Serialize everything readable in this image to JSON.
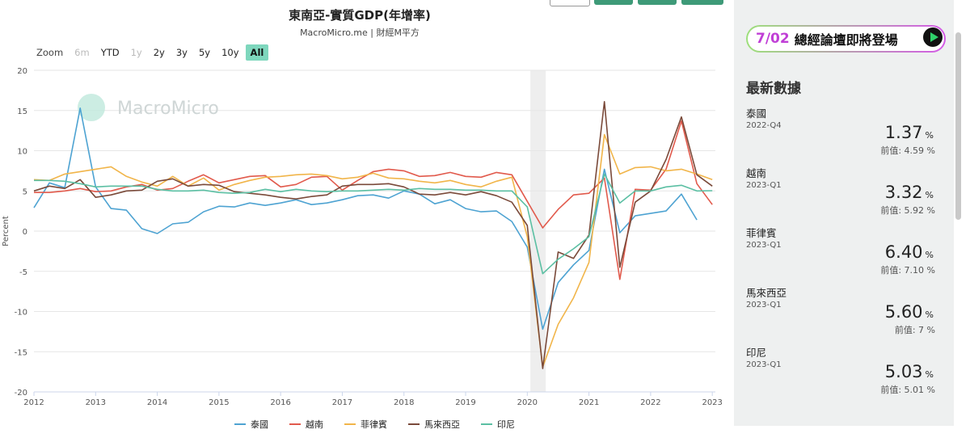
{
  "header": {
    "title": "東南亞-實質GDP(年增率)",
    "subtitle": "MacroMicro.me | 財經M平方",
    "watermark": "MacroMicro"
  },
  "zoom": {
    "label": "Zoom",
    "options": [
      {
        "label": "6m",
        "state": "disabled"
      },
      {
        "label": "YTD",
        "state": "enabled"
      },
      {
        "label": "1y",
        "state": "disabled"
      },
      {
        "label": "2y",
        "state": "enabled"
      },
      {
        "label": "3y",
        "state": "enabled"
      },
      {
        "label": "5y",
        "state": "enabled"
      },
      {
        "label": "10y",
        "state": "enabled"
      },
      {
        "label": "All",
        "state": "selected"
      }
    ]
  },
  "chart_data": {
    "type": "line",
    "title": "東南亞-實質GDP(年增率)",
    "subtitle": "MacroMicro.me | 財經M平方",
    "ylabel": "Percent",
    "xlabel": "",
    "ylim": [
      -20,
      20
    ],
    "yticks": [
      "20",
      "15",
      "10",
      "5",
      "0",
      "-5",
      "-10",
      "-15",
      "-20"
    ],
    "xlim": [
      2012.0,
      2023.05
    ],
    "xticks": [
      "2012",
      "2013",
      "2014",
      "2015",
      "2016",
      "2017",
      "2018",
      "2019",
      "2020",
      "2021",
      "2022",
      "2023"
    ],
    "grid": true,
    "legend_position": "bottom",
    "shaded_period": {
      "from": 2020.05,
      "to": 2020.3,
      "color": "#eeeeee"
    },
    "x": [
      2012.0,
      2012.25,
      2012.5,
      2012.75,
      2013.0,
      2013.25,
      2013.5,
      2013.75,
      2014.0,
      2014.25,
      2014.5,
      2014.75,
      2015.0,
      2015.25,
      2015.5,
      2015.75,
      2016.0,
      2016.25,
      2016.5,
      2016.75,
      2017.0,
      2017.25,
      2017.5,
      2017.75,
      2018.0,
      2018.25,
      2018.5,
      2018.75,
      2019.0,
      2019.25,
      2019.5,
      2019.75,
      2020.0,
      2020.25,
      2020.5,
      2020.75,
      2021.0,
      2021.25,
      2021.5,
      2021.75,
      2022.0,
      2022.25,
      2022.5,
      2022.75,
      2023.0
    ],
    "series": [
      {
        "name": "泰國",
        "color": "#4ea3d2",
        "values": [
          2.9,
          6.0,
          5.4,
          15.3,
          5.5,
          2.8,
          2.6,
          0.3,
          -0.3,
          0.9,
          1.1,
          2.4,
          3.1,
          3.0,
          3.5,
          3.2,
          3.5,
          3.9,
          3.3,
          3.5,
          3.9,
          4.4,
          4.5,
          4.1,
          5.0,
          4.6,
          3.4,
          3.9,
          2.8,
          2.4,
          2.5,
          1.2,
          -2.0,
          -12.2,
          -6.4,
          -4.2,
          -2.4,
          7.7,
          -0.2,
          1.9,
          2.2,
          2.5,
          4.6,
          1.4,
          null
        ]
      },
      {
        "name": "越南",
        "color": "#e15a4c",
        "values": [
          4.8,
          4.8,
          5.0,
          5.3,
          4.9,
          5.0,
          5.5,
          5.8,
          5.1,
          5.3,
          6.2,
          7.0,
          6.0,
          6.4,
          6.8,
          6.9,
          5.5,
          5.8,
          6.7,
          6.8,
          5.1,
          6.3,
          7.4,
          7.7,
          7.5,
          6.8,
          6.9,
          7.3,
          6.8,
          6.7,
          7.3,
          7.0,
          3.7,
          0.4,
          2.7,
          4.5,
          4.7,
          6.6,
          -6.0,
          5.2,
          5.1,
          7.7,
          13.7,
          5.9,
          3.3
        ]
      },
      {
        "name": "菲律賓",
        "color": "#f1b54a",
        "values": [
          6.4,
          6.3,
          7.1,
          7.4,
          7.7,
          8.0,
          6.8,
          6.1,
          5.6,
          6.8,
          5.6,
          6.6,
          5.1,
          5.8,
          6.3,
          6.7,
          6.8,
          7.0,
          7.1,
          6.9,
          6.5,
          6.7,
          7.2,
          6.6,
          6.5,
          6.2,
          6.0,
          6.3,
          5.8,
          5.5,
          6.2,
          6.7,
          -0.7,
          -16.9,
          -11.6,
          -8.3,
          -3.9,
          12.0,
          7.1,
          7.9,
          8.0,
          7.5,
          7.7,
          7.1,
          6.4
        ]
      },
      {
        "name": "馬來西亞",
        "color": "#7a4a3a",
        "values": [
          5.0,
          5.6,
          5.3,
          6.4,
          4.2,
          4.5,
          5.0,
          5.1,
          6.2,
          6.5,
          5.6,
          5.8,
          5.7,
          4.9,
          4.7,
          4.5,
          4.2,
          4.0,
          4.3,
          4.5,
          5.6,
          5.8,
          5.8,
          5.9,
          5.5,
          4.6,
          4.5,
          4.8,
          4.5,
          4.9,
          4.4,
          3.6,
          0.7,
          -17.1,
          -2.6,
          -3.4,
          -0.5,
          16.1,
          -4.5,
          3.6,
          5.0,
          8.9,
          14.2,
          7.0,
          5.6
        ]
      },
      {
        "name": "印尼",
        "color": "#5bbfa3",
        "values": [
          6.3,
          6.3,
          6.2,
          5.9,
          5.5,
          5.6,
          5.6,
          5.6,
          5.2,
          5.0,
          5.0,
          5.1,
          4.8,
          4.7,
          4.8,
          5.2,
          4.9,
          5.2,
          5.0,
          4.9,
          5.0,
          5.0,
          5.1,
          5.2,
          5.1,
          5.3,
          5.2,
          5.2,
          5.1,
          5.1,
          5.0,
          5.0,
          3.0,
          -5.3,
          -3.5,
          -2.2,
          -0.7,
          7.1,
          3.5,
          5.0,
          5.0,
          5.5,
          5.7,
          5.0,
          5.03
        ]
      }
    ]
  },
  "sidebar": {
    "banner_date": "7/02",
    "banner_text": "總經論壇即將登場",
    "title": "最新數據",
    "entries": [
      {
        "name": "泰國",
        "period": "2022-Q4",
        "value": "1.37",
        "unit": "%",
        "previous": "前值: 4.59 %"
      },
      {
        "name": "越南",
        "period": "2023-Q1",
        "value": "3.32",
        "unit": "%",
        "previous": "前值: 5.92 %"
      },
      {
        "name": "菲律賓",
        "period": "2023-Q1",
        "value": "6.40",
        "unit": "%",
        "previous": "前值: 7.10 %"
      },
      {
        "name": "馬來西亞",
        "period": "2023-Q1",
        "value": "5.60",
        "unit": "%",
        "previous": "前值: 7 %"
      },
      {
        "name": "印尼",
        "period": "2023-Q1",
        "value": "5.03",
        "unit": "%",
        "previous": "前值: 5.01 %"
      }
    ]
  }
}
